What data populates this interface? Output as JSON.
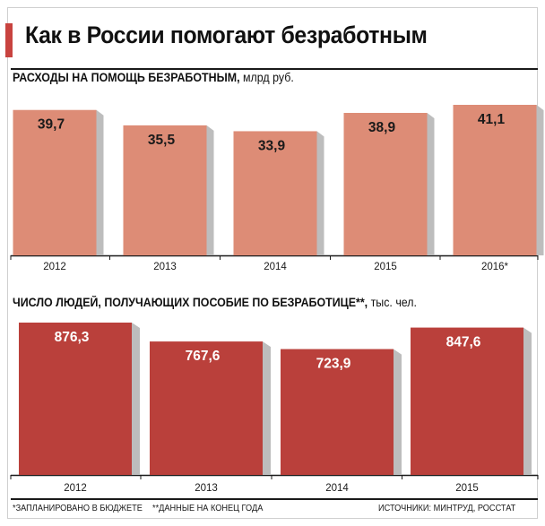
{
  "title": "Как в России помогают безработным",
  "chart_data": [
    {
      "type": "bar",
      "title_caps": "РАСХОДЫ НА ПОМОЩЬ БЕЗРАБОТНЫМ,",
      "title_unit": "млрд руб.",
      "categories": [
        "2012",
        "2013",
        "2014",
        "2015",
        "2016*"
      ],
      "values": [
        39.7,
        35.5,
        33.9,
        38.9,
        41.1
      ],
      "value_labels": [
        "39,7",
        "35,5",
        "33,9",
        "38,9",
        "41,1"
      ],
      "bar_color": "#dd8c76",
      "grid": false
    },
    {
      "type": "bar",
      "title_caps": "ЧИСЛО ЛЮДЕЙ, ПОЛУЧАЮЩИХ ПОСОБИЕ ПО БЕЗРАБОТИЦЕ**,",
      "title_unit": "тыс. чел.",
      "categories": [
        "2012",
        "2013",
        "2014",
        "2015"
      ],
      "values": [
        876.3,
        767.6,
        723.9,
        847.6
      ],
      "value_labels": [
        "876,3",
        "767,6",
        "723,9",
        "847,6"
      ],
      "bar_color": "#ba403b",
      "grid": false
    }
  ],
  "footnotes": {
    "planned": "*ЗАПЛАНИРОВАНО В БЮДЖЕТЕ",
    "year_end": "**ДАННЫЕ НА КОНЕЦ ГОДА",
    "sources": "ИСТОЧНИКИ: МИНТРУД, РОССТАТ"
  }
}
